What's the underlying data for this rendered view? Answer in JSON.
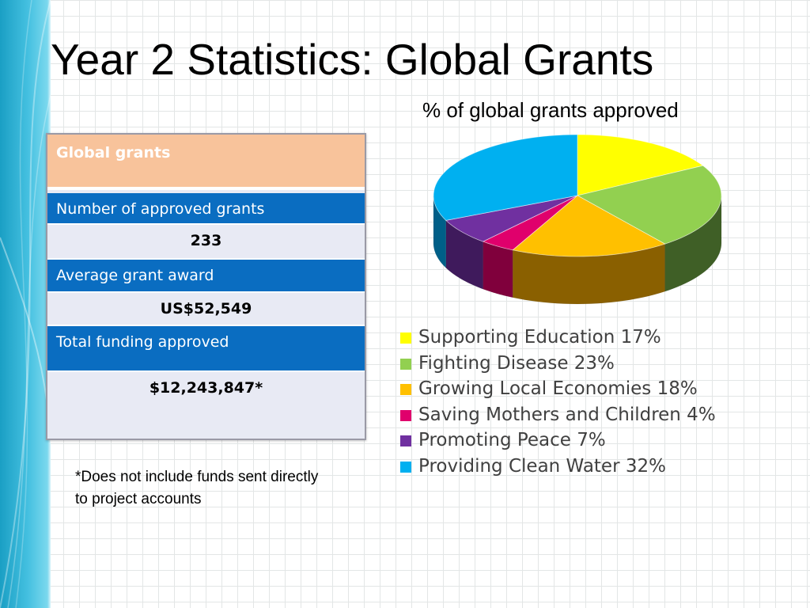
{
  "slide": {
    "title": "Year 2 Statistics: Global Grants",
    "footnote": "*Does not include funds sent directly to project accounts"
  },
  "table": {
    "header": "Global grants",
    "rows": [
      {
        "label": "Number of approved grants",
        "value": "233"
      },
      {
        "label": "Average grant award",
        "value": "US$52,549"
      },
      {
        "label": "Total funding approved",
        "value": "$12,243,847*"
      }
    ],
    "colors": {
      "header": "#f8c39b",
      "label": "#0a6dc1",
      "value": "#e8eaf4"
    }
  },
  "chart_data": {
    "type": "pie",
    "title": "% of global grants approved",
    "three_d": true,
    "legend_position": "bottom",
    "slices": [
      {
        "label": "Supporting Education 17%",
        "value": 17,
        "color": "#ffff00",
        "dark": "#a8a800"
      },
      {
        "label": "Fighting Disease 23%",
        "value": 23,
        "color": "#92d050",
        "dark": "#3f5f26"
      },
      {
        "label": "Growing Local Economies 18%",
        "value": 18,
        "color": "#ffc000",
        "dark": "#8a6000"
      },
      {
        "label": "Saving Mothers and Children 4%",
        "value": 4,
        "color": "#e0006c",
        "dark": "#80003c"
      },
      {
        "label": "Promoting Peace 7%",
        "value": 7,
        "color": "#7030a0",
        "dark": "#3f1a5c"
      },
      {
        "label": "Providing Clean Water 32%",
        "value": 32,
        "color": "#00b0f0",
        "dark": "#005f88"
      }
    ]
  }
}
